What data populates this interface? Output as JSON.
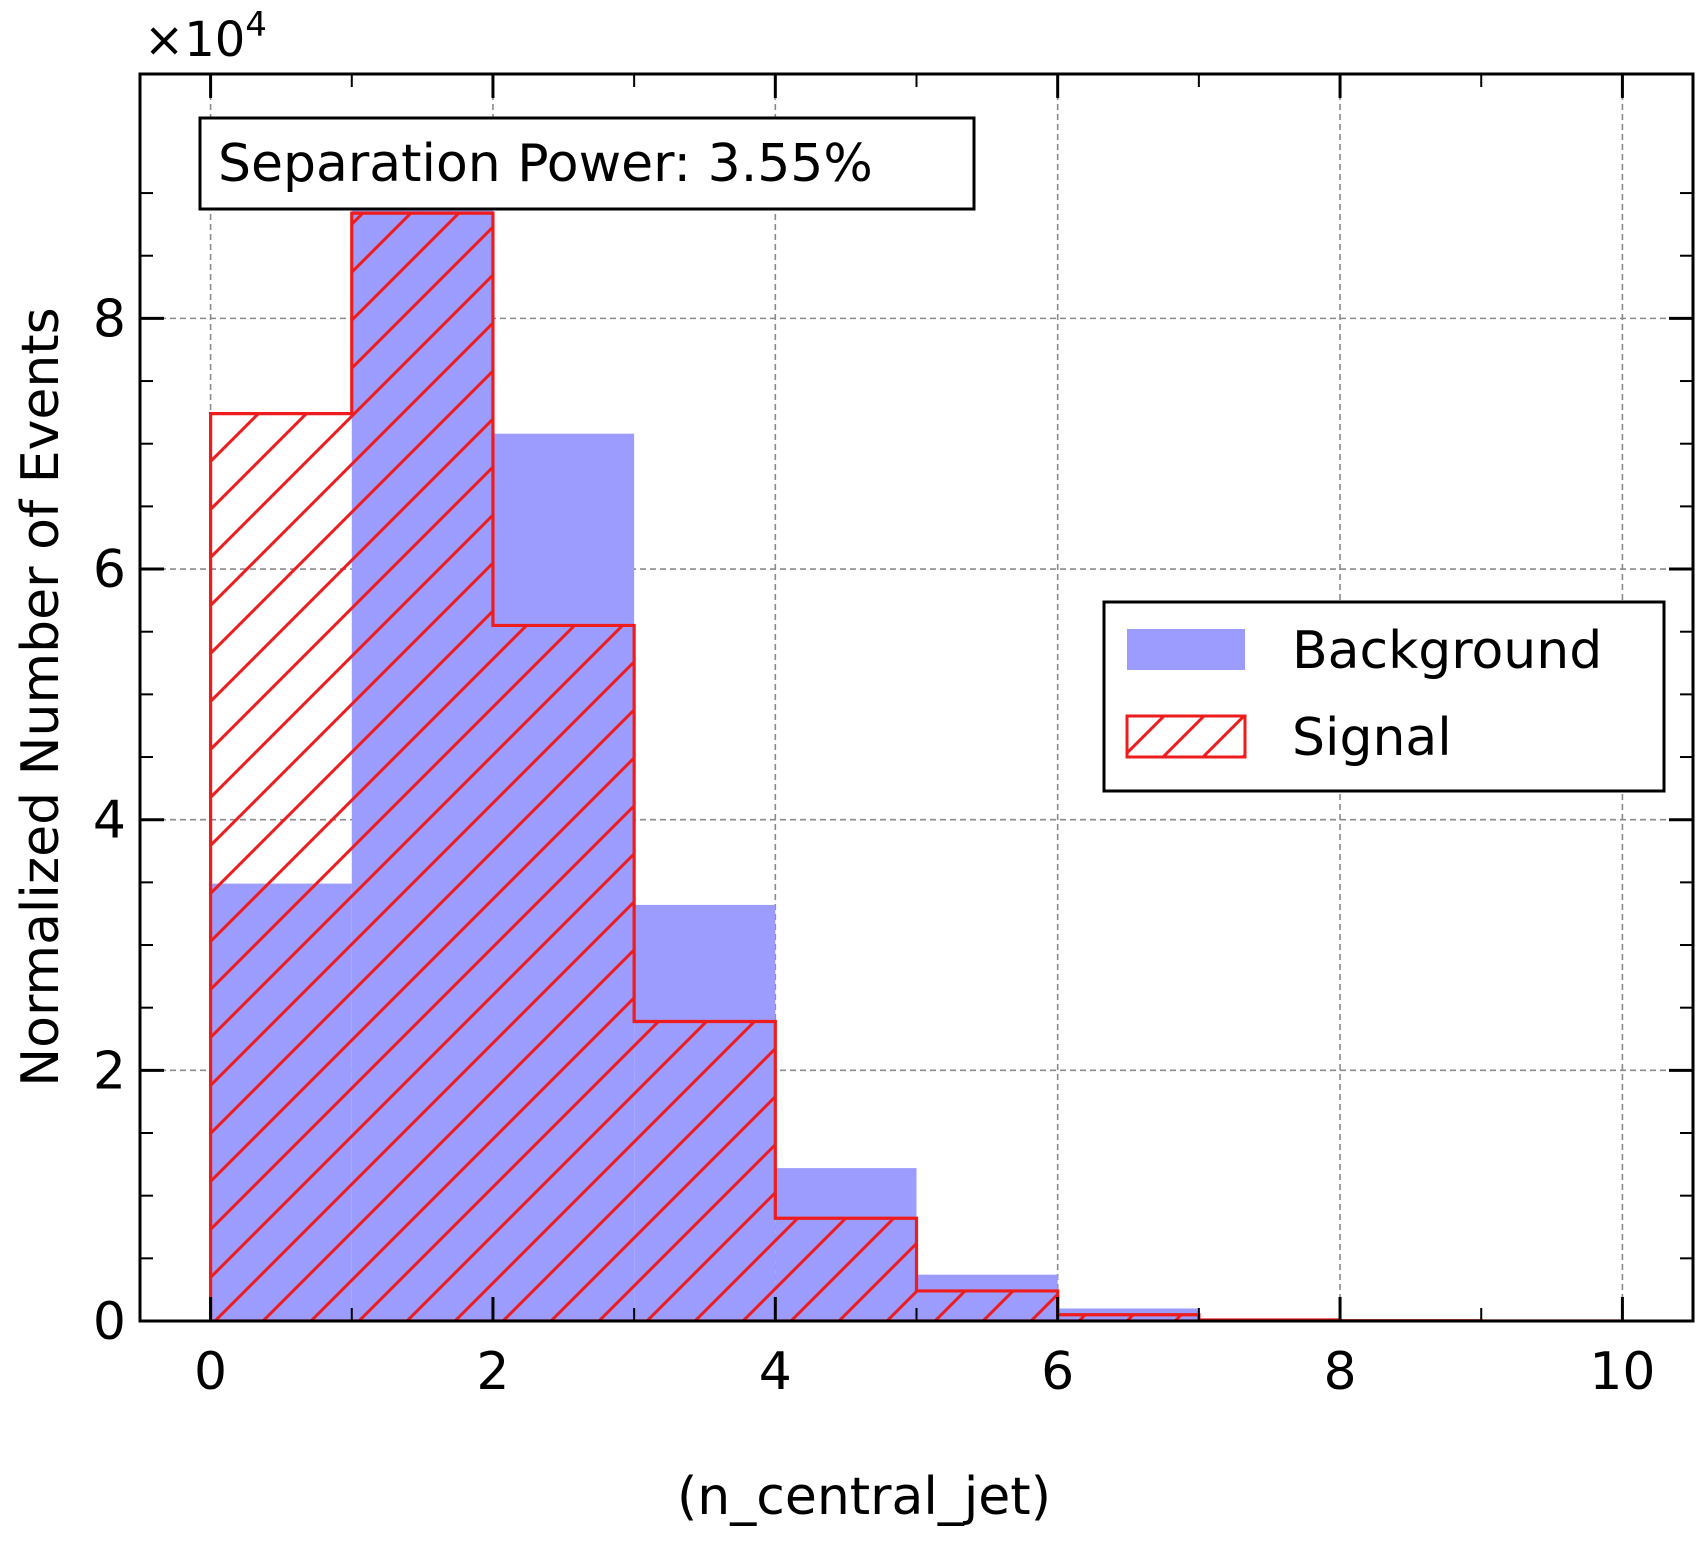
{
  "chart_data": {
    "type": "histogram",
    "xlabel": "(n_central_jet)",
    "ylabel": "Normalized Number of Events",
    "y_multiplier": "×10",
    "y_multiplier_exponent": "4",
    "xlim": [
      -0.5,
      10.5
    ],
    "ylim": [
      0,
      9.95
    ],
    "x_ticks": [
      0,
      2,
      4,
      6,
      8,
      10
    ],
    "x_tick_labels": [
      "0",
      "2",
      "4",
      "6",
      "8",
      "10"
    ],
    "y_ticks": [
      0,
      2,
      4,
      6,
      8
    ],
    "y_tick_labels": [
      "0",
      "2",
      "4",
      "6",
      "8"
    ],
    "grid": true,
    "legend_position": "center-right",
    "annotation": "Separation Power: 3.55%",
    "bin_edges": [
      0,
      1,
      2,
      3,
      4,
      5,
      6,
      7,
      8,
      9,
      10
    ],
    "series": [
      {
        "name": "Background",
        "style": "filled",
        "color": "#9c9cff",
        "values": [
          3.49,
          8.86,
          7.08,
          3.32,
          1.22,
          0.37,
          0.1,
          0.015,
          0.003,
          0.001
        ]
      },
      {
        "name": "Signal",
        "style": "hatched-step",
        "color": "#ee1c1c",
        "values": [
          7.24,
          8.84,
          5.55,
          2.39,
          0.82,
          0.24,
          0.05,
          0.008,
          0.002,
          0.0
        ]
      }
    ]
  }
}
